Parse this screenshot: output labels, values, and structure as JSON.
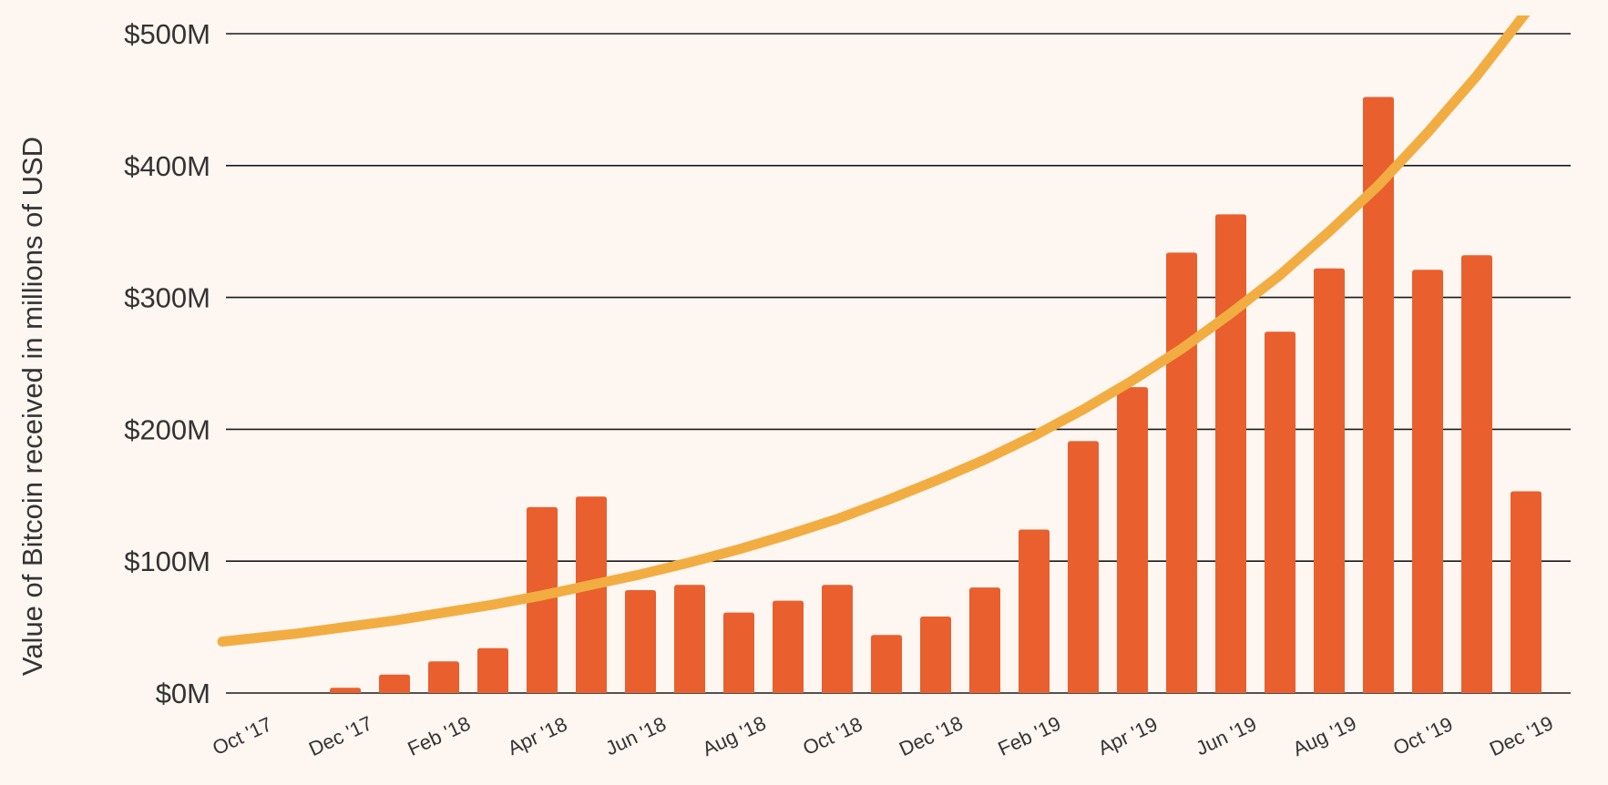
{
  "colors": {
    "background": "#fdf6f1",
    "bar": "#e95f2e",
    "trend": "#f2ad42",
    "grid": "#1a1a1a",
    "text": "#333333"
  },
  "chart_data": {
    "type": "bar",
    "title": "",
    "xlabel": "",
    "ylabel": "Value of Bitcoin received in millions of USD",
    "ylim": [
      0,
      500
    ],
    "y_ticks": [
      0,
      100,
      200,
      300,
      400,
      500
    ],
    "y_tick_labels": [
      "$0M",
      "$100M",
      "$200M",
      "$300M",
      "$400M",
      "$500M"
    ],
    "grid": "horizontal",
    "legend": "none",
    "categories": [
      "Oct '17",
      "Nov '17",
      "Dec '17",
      "Jan '18",
      "Feb '18",
      "Mar '18",
      "Apr '18",
      "May '18",
      "Jun '18",
      "Jul '18",
      "Aug '18",
      "Sep '18",
      "Oct '18",
      "Nov '18",
      "Dec '18",
      "Jan '19",
      "Feb '19",
      "Mar '19",
      "Apr '19",
      "May '19",
      "Jun '19",
      "Jul '19",
      "Aug '19",
      "Sep '19",
      "Oct '19",
      "Nov '19",
      "Dec '19"
    ],
    "x_tick_labels": [
      "Oct '17",
      "",
      "Dec '17",
      "",
      "Feb '18",
      "",
      "Apr '18",
      "",
      "Jun '18",
      "",
      "Aug '18",
      "",
      "Oct '18",
      "",
      "Dec '18",
      "",
      "Feb '19",
      "",
      "Apr '19",
      "",
      "Jun '19",
      "",
      "Aug '19",
      "",
      "Oct '19",
      "",
      "Dec '19"
    ],
    "series": [
      {
        "type": "bar",
        "values": [
          0,
          0,
          4,
          14,
          24,
          34,
          141,
          149,
          78,
          82,
          61,
          70,
          82,
          44,
          58,
          80,
          124,
          191,
          232,
          334,
          363,
          274,
          322,
          452,
          321,
          332,
          153
        ]
      },
      {
        "type": "trend",
        "shape": "exponential",
        "values": [
          41,
          45,
          50,
          55,
          61,
          67,
          74,
          82,
          90,
          99,
          109,
          120,
          132,
          146,
          161,
          177,
          195,
          215,
          237,
          261,
          288,
          317,
          350,
          385,
          425,
          468,
          516
        ]
      }
    ]
  }
}
